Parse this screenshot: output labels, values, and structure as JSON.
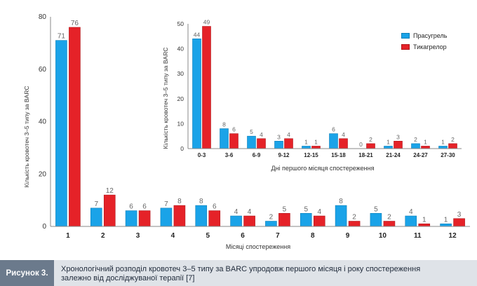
{
  "caption": {
    "label": "Рисунок 3.",
    "text_line1": "Хронологічний розподіл кровотеч 3–5 типу за BARC упродовж першого місяця і  року спостереження",
    "text_line2": "залежно від досліджуваної терапії [7]"
  },
  "colors": {
    "prasugrel": "#1aa3e8",
    "ticagrelor": "#e52228",
    "label_text": "#666666",
    "axis": "#888888"
  },
  "chart_data": [
    {
      "type": "bar",
      "xlabel": "Місяці спостереження",
      "ylabel": "Кількість кровотеч 3–5 типу за BARC",
      "ylim": [
        0,
        80
      ],
      "yticks": [
        0,
        20,
        40,
        60,
        80
      ],
      "categories": [
        "1",
        "2",
        "3",
        "4",
        "5",
        "6",
        "7",
        "8",
        "9",
        "10",
        "11",
        "12"
      ],
      "series": [
        {
          "name": "Прасугрель",
          "values": [
            71,
            7,
            6,
            7,
            8,
            4,
            2,
            5,
            8,
            5,
            4,
            1
          ]
        },
        {
          "name": "Тикагрелор",
          "values": [
            76,
            12,
            6,
            8,
            6,
            4,
            5,
            4,
            2,
            2,
            1,
            3
          ]
        }
      ]
    },
    {
      "type": "bar",
      "xlabel": "Дні першого місяця спостереження",
      "ylabel": "Кількість кровотеч 3–5 типу за BARC",
      "ylim": [
        0,
        50
      ],
      "yticks": [
        0,
        10,
        20,
        30,
        40,
        50
      ],
      "categories": [
        "0-3",
        "3-6",
        "6-9",
        "9-12",
        "12-15",
        "15-18",
        "18-21",
        "21-24",
        "24-27",
        "27-30"
      ],
      "series": [
        {
          "name": "Прасугрель",
          "values": [
            44,
            8,
            5,
            3,
            1,
            6,
            0,
            1,
            2,
            1
          ]
        },
        {
          "name": "Тикагрелор",
          "values": [
            49,
            6,
            4,
            4,
            1,
            4,
            2,
            3,
            1,
            2
          ]
        }
      ],
      "legend": "top-right"
    }
  ]
}
